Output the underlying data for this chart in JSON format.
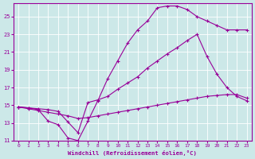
{
  "xlabel": "Windchill (Refroidissement éolien,°C)",
  "ylabel": "",
  "bg_color": "#cce8e8",
  "line_color": "#990099",
  "grid_color": "#ffffff",
  "xlim": [
    -0.5,
    23.5
  ],
  "ylim": [
    11,
    26.5
  ],
  "xticks": [
    0,
    1,
    2,
    3,
    4,
    5,
    6,
    7,
    8,
    9,
    10,
    11,
    12,
    13,
    14,
    15,
    16,
    17,
    18,
    19,
    20,
    21,
    22,
    23
  ],
  "yticks": [
    11,
    13,
    15,
    17,
    19,
    21,
    23,
    25
  ],
  "line1_x": [
    0,
    1,
    2,
    3,
    4,
    5,
    6,
    7,
    8,
    9,
    10,
    11,
    12,
    13,
    14,
    15,
    16,
    17,
    18,
    19,
    20,
    21,
    22,
    23
  ],
  "line1_y": [
    14.8,
    14.7,
    14.5,
    13.2,
    12.8,
    11.3,
    11.0,
    13.2,
    15.5,
    18.0,
    20.0,
    22.0,
    23.5,
    24.5,
    26.0,
    26.2,
    26.2,
    25.8,
    25.0,
    24.5,
    24.0,
    23.5,
    23.5,
    23.5
  ],
  "line2_x": [
    0,
    1,
    2,
    3,
    4,
    5,
    6,
    7,
    8,
    9,
    10,
    11,
    12,
    13,
    14,
    15,
    16,
    17,
    18,
    19,
    20,
    21,
    22,
    23
  ],
  "line2_y": [
    14.8,
    14.7,
    14.6,
    14.5,
    14.3,
    13.1,
    11.9,
    15.3,
    15.6,
    16.0,
    16.8,
    17.5,
    18.2,
    19.2,
    20.0,
    20.8,
    21.5,
    22.3,
    23.0,
    20.5,
    18.5,
    17.0,
    16.0,
    15.5
  ],
  "line3_x": [
    0,
    1,
    2,
    3,
    4,
    5,
    6,
    7,
    8,
    9,
    10,
    11,
    12,
    13,
    14,
    15,
    16,
    17,
    18,
    19,
    20,
    21,
    22,
    23
  ],
  "line3_y": [
    14.8,
    14.6,
    14.4,
    14.2,
    14.0,
    13.8,
    13.5,
    13.6,
    13.8,
    14.0,
    14.2,
    14.4,
    14.6,
    14.8,
    15.0,
    15.2,
    15.4,
    15.6,
    15.8,
    16.0,
    16.1,
    16.2,
    16.2,
    15.8
  ]
}
